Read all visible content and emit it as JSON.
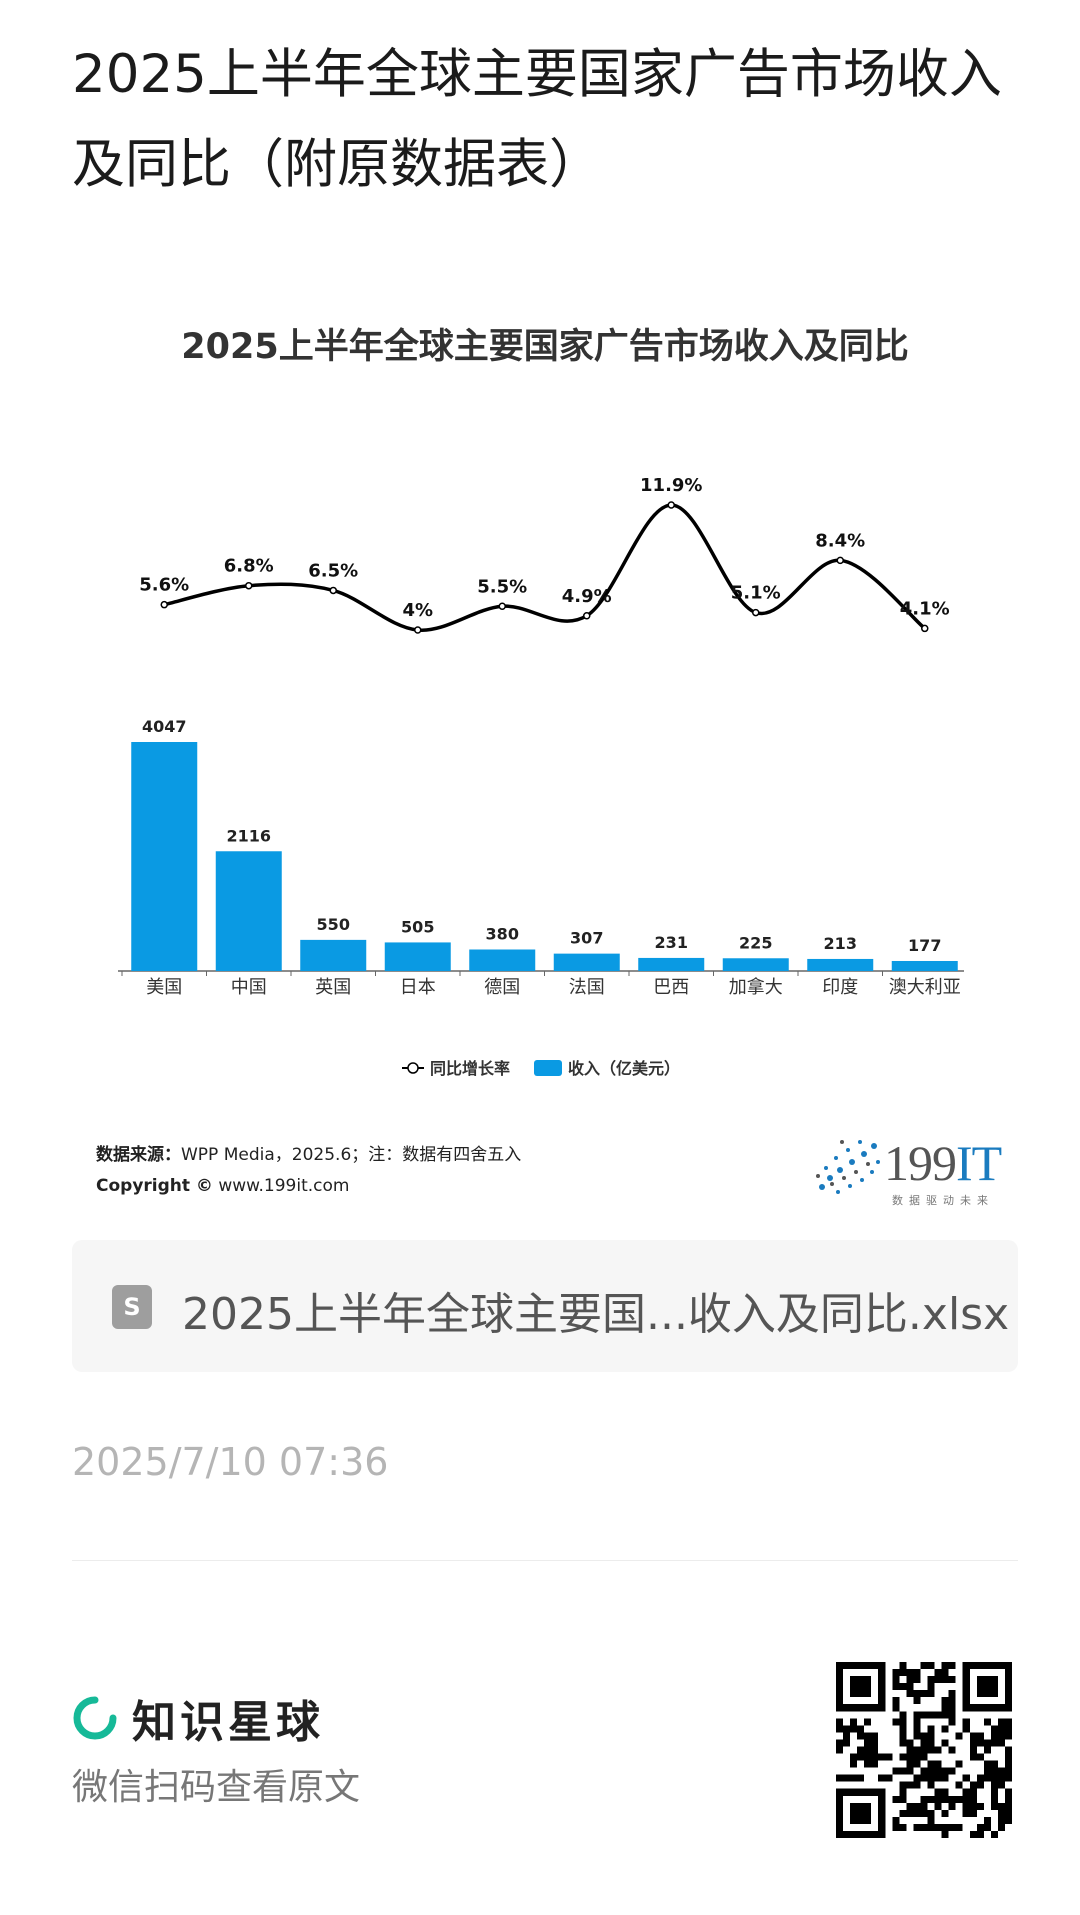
{
  "post": {
    "title": "2025上半年全球主要国家广告市场收入及同比（附原数据表）"
  },
  "chart": {
    "title": "2025上半年全球主要国家广告市场收入及同比",
    "legend_line": "同比增长率",
    "legend_bar": "收入（亿美元）",
    "source_label": "数据来源：",
    "source_text": "WPP Media，2025.6；注：数据有四舍五入",
    "copyright_label": "Copyright ©",
    "copyright_url": "www.199it.com",
    "logo_number": "199",
    "logo_it": "IT",
    "logo_slogan": "数据驱动未来",
    "colors": {
      "bar": "#0a9ae3",
      "line": "#000000"
    }
  },
  "chart_data": {
    "type": "bar",
    "title": "2025上半年全球主要国家广告市场收入及同比",
    "categories": [
      "美国",
      "中国",
      "英国",
      "日本",
      "德国",
      "法国",
      "巴西",
      "加拿大",
      "印度",
      "澳大利亚"
    ],
    "series": [
      {
        "name": "收入（亿美元）",
        "type": "bar",
        "values": [
          4047,
          2116,
          550,
          505,
          380,
          307,
          231,
          225,
          213,
          177
        ]
      },
      {
        "name": "同比增长率",
        "type": "line",
        "values": [
          5.6,
          6.8,
          6.5,
          4,
          5.5,
          4.9,
          11.9,
          5.1,
          8.4,
          4.1
        ],
        "labels": [
          "5.6%",
          "6.8%",
          "6.5%",
          "4%",
          "5.5%",
          "4.9%",
          "11.9%",
          "5.1%",
          "8.4%",
          "4.1%"
        ]
      }
    ],
    "legend_position": "bottom",
    "grid": false
  },
  "file": {
    "icon_letter": "S",
    "name": "2025上半年全球主要国...收入及同比.xlsx"
  },
  "timestamp": "2025/7/10 07:36",
  "footer": {
    "brand": "知识星球",
    "scan_hint": "微信扫码查看原文"
  }
}
